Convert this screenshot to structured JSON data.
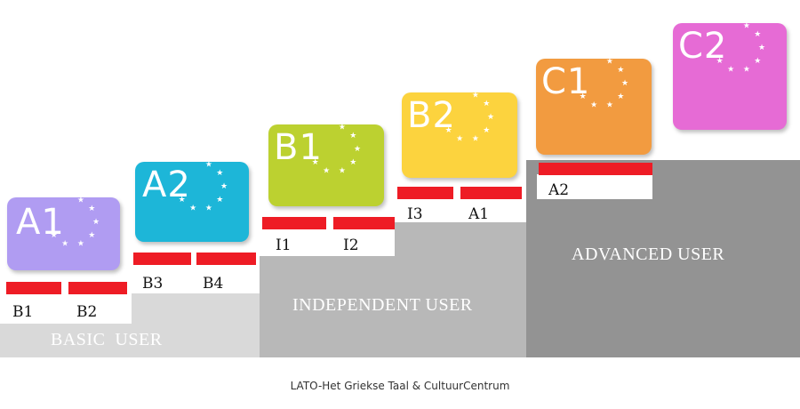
{
  "levels": [
    {
      "label": "A1",
      "color": "#b09cf2"
    },
    {
      "label": "A2",
      "color": "#1db6d8"
    },
    {
      "label": "B1",
      "color": "#bcd130"
    },
    {
      "label": "B2",
      "color": "#fcd33e"
    },
    {
      "label": "C1",
      "color": "#f29b40"
    },
    {
      "label": "C2",
      "color": "#e66bd5"
    }
  ],
  "codes": {
    "b1": "B1",
    "b2": "B2",
    "b3": "B3",
    "b4": "B4",
    "i1": "I1",
    "i2": "I2",
    "i3": "I3",
    "a1": "A1",
    "a2": "A2"
  },
  "groups": {
    "basic": "BASIC  USER",
    "independent": "INDEPENDENT USER",
    "advanced": "ADVANCED USER"
  },
  "footer": "LATO-Het Griekse Taal & CultuurCentrum",
  "colors": {
    "bar": "#ee1c25",
    "basic_step": "#d9d9d9",
    "independent_step": "#b8b8b8",
    "advanced_step": "#939393"
  }
}
